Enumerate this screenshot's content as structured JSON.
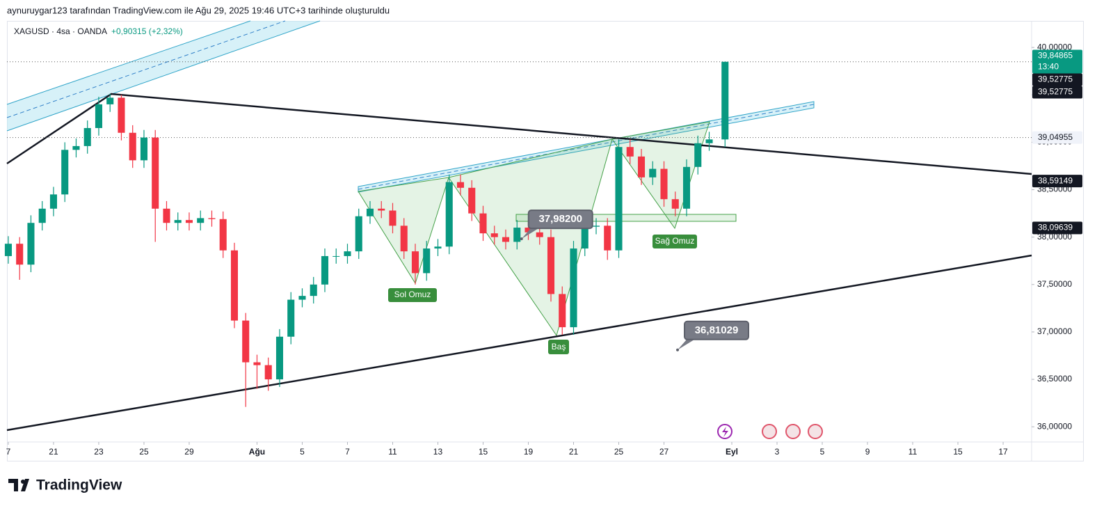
{
  "author_line": "aynuruygar123 tarafından TradingView.com ile Ağu 29, 2025 19:46 UTC+3 tarihinde oluşturuldu",
  "brand": "TradingView",
  "chart_data": {
    "type": "candlestick",
    "symbol": "XAGUSD · 4sa · OANDA",
    "change": "+0,90315 (+2,32%)",
    "up_color": "#089981",
    "down_color": "#f23645",
    "xlim": [
      -0.06,
      45.26
    ],
    "ylim": [
      35.84,
      40.28
    ],
    "grid": false,
    "xticks": [
      {
        "value": 0,
        "label": "7"
      },
      {
        "value": 2,
        "label": "21"
      },
      {
        "value": 4,
        "label": "23"
      },
      {
        "value": 6,
        "label": "25"
      },
      {
        "value": 8,
        "label": "29"
      },
      {
        "value": 11,
        "label": "Ağu"
      },
      {
        "value": 13,
        "label": "5"
      },
      {
        "value": 15,
        "label": "7"
      },
      {
        "value": 17,
        "label": "11"
      },
      {
        "value": 19,
        "label": "13"
      },
      {
        "value": 21,
        "label": "15"
      },
      {
        "value": 23,
        "label": "19"
      },
      {
        "value": 25,
        "label": "21"
      },
      {
        "value": 27,
        "label": "25"
      },
      {
        "value": 29,
        "label": "27"
      },
      {
        "value": 32,
        "label": "Eyl"
      },
      {
        "value": 34,
        "label": "3"
      },
      {
        "value": 36,
        "label": "5"
      },
      {
        "value": 38,
        "label": "9"
      },
      {
        "value": 40,
        "label": "11"
      },
      {
        "value": 42,
        "label": "15"
      },
      {
        "value": 44,
        "label": "17"
      }
    ],
    "yticks": [
      {
        "value": 36,
        "label": "36,00000"
      },
      {
        "value": 36.5,
        "label": "36,50000"
      },
      {
        "value": 37,
        "label": "37,00000"
      },
      {
        "value": 37.5,
        "label": "37,50000"
      },
      {
        "value": 38,
        "label": "38,00000"
      },
      {
        "value": 38.5,
        "label": "38,50000"
      },
      {
        "value": 39,
        "label": "39,00000"
      },
      {
        "value": 39.5,
        "label": "39,50000"
      },
      {
        "value": 40,
        "label": "40,00000"
      }
    ],
    "x": [
      0,
      0.5,
      1,
      1.5,
      2,
      2.5,
      3,
      3.5,
      4,
      4.5,
      5,
      5.5,
      6,
      6.5,
      7,
      7.5,
      8,
      8.5,
      9,
      9.5,
      10,
      10.5,
      11,
      11.5,
      12,
      12.5,
      13,
      13.5,
      14,
      14.5,
      15,
      15.5,
      16,
      16.5,
      17,
      17.5,
      18,
      18.5,
      19,
      19.5,
      20,
      20.5,
      21,
      21.5,
      22,
      22.5,
      23,
      23.5,
      24,
      24.5,
      25,
      25.5,
      26,
      26.5,
      27,
      27.5,
      28,
      28.5,
      29,
      29.5,
      30,
      30.5,
      31,
      31.7
    ],
    "open": [
      37.8,
      37.93,
      37.71,
      38.15,
      38.3,
      38.45,
      38.92,
      38.96,
      39.15,
      39.4,
      39.47,
      39.1,
      38.81,
      39.05,
      38.3,
      38.15,
      38.18,
      38.15,
      38.2,
      38.19,
      37.86,
      37.12,
      36.68,
      36.65,
      36.5,
      36.95,
      37.34,
      37.38,
      37.5,
      37.8,
      37.8,
      37.85,
      38.22,
      38.3,
      38.28,
      38.12,
      37.85,
      37.62,
      37.88,
      37.9,
      38.58,
      38.52,
      38.25,
      38.04,
      38.0,
      37.95,
      38.1,
      38.05,
      38.0,
      37.4,
      37.05,
      37.88,
      38.11,
      38.12,
      37.86,
      38.95,
      38.85,
      38.63,
      38.72,
      38.4,
      38.3,
      38.74,
      38.99,
      39.03
    ],
    "high": [
      38.01,
      38.0,
      38.23,
      38.38,
      38.53,
      39.0,
      39.04,
      39.23,
      39.48,
      39.51,
      39.5,
      39.18,
      39.13,
      39.13,
      38.38,
      38.26,
      38.26,
      38.28,
      38.28,
      38.27,
      37.94,
      37.2,
      36.76,
      36.73,
      37.03,
      37.42,
      37.46,
      37.58,
      37.88,
      37.88,
      37.93,
      38.3,
      38.38,
      38.38,
      38.36,
      38.2,
      37.93,
      37.96,
      37.98,
      38.66,
      38.66,
      38.6,
      38.33,
      38.12,
      38.08,
      38.18,
      38.18,
      38.13,
      38.08,
      37.48,
      37.96,
      38.19,
      38.2,
      38.2,
      39.03,
      39.03,
      38.93,
      38.8,
      38.8,
      38.48,
      38.82,
      39.07,
      39.11,
      39.84865
    ],
    "low": [
      37.72,
      37.55,
      37.63,
      38.07,
      38.22,
      38.37,
      38.84,
      38.88,
      39.07,
      39.32,
      39.02,
      38.73,
      38.73,
      37.95,
      38.07,
      38.07,
      38.07,
      38.07,
      38.11,
      37.78,
      37.04,
      36.21,
      36.4,
      36.38,
      36.42,
      36.87,
      37.26,
      37.3,
      37.42,
      37.72,
      37.72,
      37.77,
      38.14,
      38.2,
      38.04,
      37.77,
      37.5,
      37.54,
      37.8,
      37.82,
      38.44,
      38.17,
      37.96,
      37.92,
      37.87,
      37.87,
      37.97,
      37.92,
      37.32,
      36.97,
      36.97,
      37.8,
      38.03,
      37.76,
      37.78,
      38.77,
      38.55,
      38.55,
      38.32,
      38.22,
      38.22,
      38.66,
      38.91,
      38.95
    ],
    "close": [
      37.93,
      37.71,
      38.15,
      38.3,
      38.45,
      38.92,
      38.96,
      39.15,
      39.4,
      39.47,
      39.1,
      38.81,
      39.05,
      38.3,
      38.15,
      38.18,
      38.15,
      38.2,
      38.19,
      37.86,
      37.12,
      36.68,
      36.65,
      36.5,
      36.95,
      37.34,
      37.38,
      37.5,
      37.8,
      37.8,
      37.85,
      38.22,
      38.3,
      38.28,
      38.12,
      37.85,
      37.62,
      37.88,
      37.9,
      38.58,
      38.52,
      38.25,
      38.04,
      38.0,
      37.95,
      38.1,
      38.05,
      38.0,
      37.4,
      37.05,
      37.88,
      38.11,
      38.12,
      37.86,
      38.95,
      38.85,
      38.63,
      38.72,
      38.4,
      38.3,
      38.74,
      38.99,
      39.03,
      39.84865
    ],
    "price_labels": [
      {
        "value": 39.84865,
        "label": "39,84865",
        "countdown": "13:40",
        "color": "#089981"
      },
      {
        "value": 39.52775,
        "label": "39,52775",
        "color": "#131722"
      },
      {
        "value": 39.52775,
        "label": "39,52775",
        "color": "#131722"
      },
      {
        "value": 39.04955,
        "label": "39,04955",
        "color": "#f0f3fa"
      },
      {
        "value": 38.59149,
        "label": "38,59149",
        "color": "#131722"
      },
      {
        "value": 38.09639,
        "label": "38,09639",
        "color": "#131722"
      }
    ],
    "annotations": [
      {
        "value": 37.982,
        "label": "37,98200",
        "x": 22.7
      },
      {
        "value": 36.81029,
        "label": "36,81029",
        "x": 29.6
      }
    ],
    "pattern_labels": [
      "Sol Omuz",
      "Baş",
      "Sağ Omuz"
    ]
  }
}
